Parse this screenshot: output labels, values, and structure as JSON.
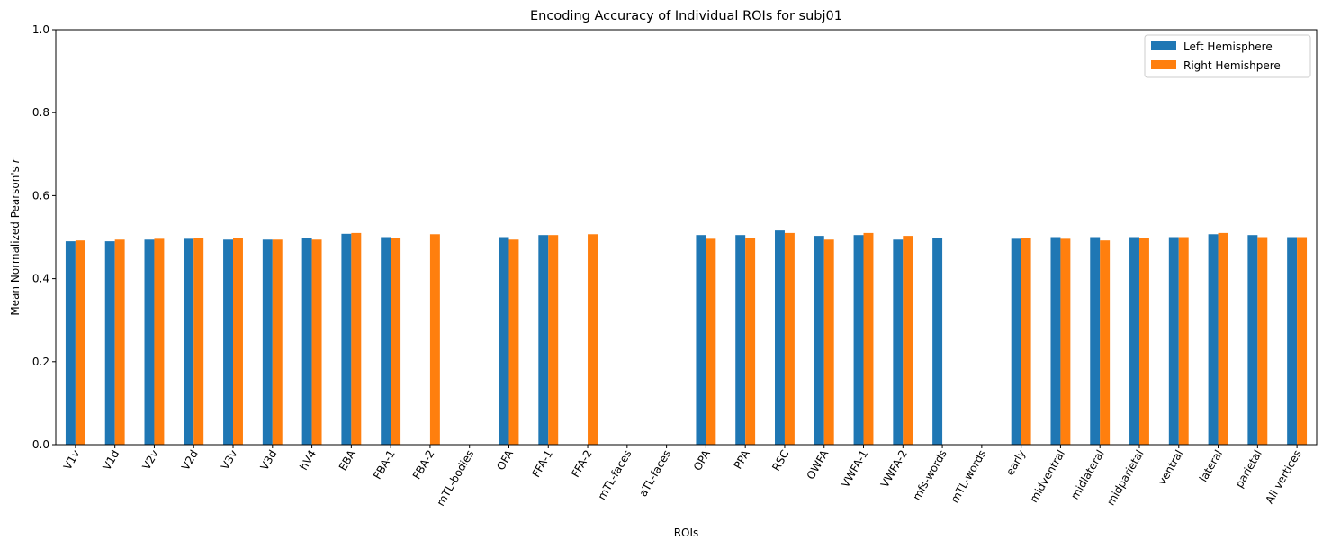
{
  "chart_data": {
    "type": "bar",
    "title": "Encoding Accuracy of Individual ROIs for subj01",
    "xlabel": "ROIs",
    "ylabel_prefix": "Mean Normalized Pearson's ",
    "ylabel_symbol": "r",
    "ylim": [
      0,
      1.0
    ],
    "yticks": [
      "0.0",
      "0.2",
      "0.4",
      "0.6",
      "0.8",
      "1.0"
    ],
    "grid": false,
    "legend_position": "top-right",
    "categories": [
      "V1v",
      "V1d",
      "V2v",
      "V2d",
      "V3v",
      "V3d",
      "hV4",
      "EBA",
      "FBA-1",
      "FBA-2",
      "mTL-bodies",
      "OFA",
      "FFA-1",
      "FFA-2",
      "mTL-faces",
      "aTL-faces",
      "OPA",
      "PPA",
      "RSC",
      "OWFA",
      "VWFA-1",
      "VWFA-2",
      "mfs-words",
      "mTL-words",
      "early",
      "midventral",
      "midlateral",
      "midparietal",
      "ventral",
      "lateral",
      "parietal",
      "All vertices"
    ],
    "series": [
      {
        "name": "Left Hemisphere",
        "color": "#1f77b4",
        "values": [
          0.49,
          0.49,
          0.494,
          0.496,
          0.494,
          0.494,
          0.498,
          0.508,
          0.5,
          null,
          null,
          0.5,
          0.505,
          null,
          null,
          null,
          0.505,
          0.505,
          0.516,
          0.503,
          0.505,
          0.494,
          0.498,
          null,
          0.496,
          0.5,
          0.5,
          0.5,
          0.5,
          0.507,
          0.505,
          0.5
        ]
      },
      {
        "name": "Right Hemishpere",
        "color": "#ff7f0e",
        "values": [
          0.492,
          0.494,
          0.496,
          0.498,
          0.498,
          0.494,
          0.494,
          0.51,
          0.498,
          0.507,
          null,
          0.494,
          0.505,
          0.507,
          null,
          null,
          0.496,
          0.498,
          0.51,
          0.494,
          0.51,
          0.503,
          null,
          null,
          0.498,
          0.496,
          0.492,
          0.498,
          0.5,
          0.51,
          0.5,
          0.5
        ]
      }
    ]
  }
}
